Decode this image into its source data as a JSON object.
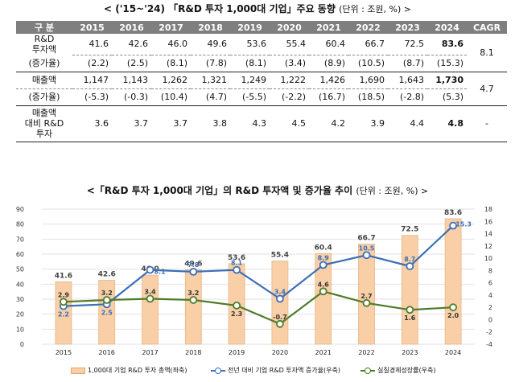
{
  "table_title": "< ('15~'24) 「R&D 투자 1,000대 기업」주요 동향",
  "table_unit": "(단위 : 조원, %) >",
  "table": {
    "header": [
      "구 분",
      "2015",
      "2016",
      "2017",
      "2018",
      "2019",
      "2020",
      "2021",
      "2022",
      "2023",
      "2024",
      "CAGR"
    ],
    "rnd_label_1": "R&D",
    "rnd_label_2": "투자액",
    "rnd_label_3": "(증가율)",
    "rnd_values": [
      "41.6",
      "42.6",
      "46.0",
      "49.6",
      "53.6",
      "55.4",
      "60.4",
      "66.7",
      "72.5",
      "83.6"
    ],
    "rnd_growth": [
      "(2.2)",
      "(2.5)",
      "(8.1)",
      "(7.8)",
      "(8.1)",
      "(3.4)",
      "(8.9)",
      "(10.5)",
      "(8.7)",
      "(15.3)"
    ],
    "rnd_cagr": "8.1",
    "sales_label_1": "매출액",
    "sales_label_2": "(증가율)",
    "sales_values": [
      "1,147",
      "1,143",
      "1,262",
      "1,321",
      "1,249",
      "1,222",
      "1,426",
      "1,690",
      "1,643",
      "1,730"
    ],
    "sales_growth": [
      "(-5.3)",
      "(-0.3)",
      "(10.4)",
      "(4.7)",
      "(-5.5)",
      "(-2.2)",
      "(16.7)",
      "(18.5)",
      "(-2.8)",
      "(5.3)"
    ],
    "sales_cagr": "4.7",
    "ratio_label_1": "매출액",
    "ratio_label_2": "대비 R&D",
    "ratio_label_3": "투자",
    "ratio_values": [
      "3.6",
      "3.7",
      "3.7",
      "3.8",
      "4.3",
      "4.5",
      "4.2",
      "3.9",
      "4.4",
      "4.8"
    ],
    "ratio_cagr": "-"
  },
  "chart_title": "<「R&D 투자 1,000대 기업」의 R&D 투자액 및 증가율 추이",
  "chart_unit": "(단위 : 조원, %) >",
  "chart_data": {
    "type": "bar",
    "categories": [
      "2015",
      "2016",
      "2017",
      "2018",
      "2019",
      "2020",
      "2021",
      "2022",
      "2023",
      "2024"
    ],
    "series": [
      {
        "name": "1,000대 기업 R&D 투자 총액(좌축)",
        "type": "bar",
        "axis": "left",
        "color": "#f9cfa8",
        "values": [
          41.6,
          42.6,
          46.0,
          49.6,
          53.6,
          55.4,
          60.4,
          66.7,
          72.5,
          83.6
        ]
      },
      {
        "name": "전년 대비 기업 R&D 투자액 증가율(우축)",
        "type": "line",
        "axis": "right",
        "color": "#3c6fb4",
        "values": [
          2.2,
          2.5,
          8.1,
          7.8,
          8.1,
          3.4,
          8.9,
          10.5,
          8.7,
          15.3
        ]
      },
      {
        "name": "실질경제성장률(우축)",
        "type": "line",
        "axis": "right",
        "color": "#4e7d2a",
        "values": [
          2.9,
          3.2,
          3.4,
          3.2,
          2.3,
          -0.7,
          4.6,
          2.7,
          1.6,
          2.0
        ]
      }
    ],
    "y_left": {
      "min": 0,
      "max": 90,
      "ticks": [
        0,
        10,
        20,
        30,
        40,
        50,
        60,
        70,
        80,
        90
      ]
    },
    "y_right": {
      "min": -4,
      "max": 18,
      "ticks": [
        -4,
        -2,
        0,
        2,
        4,
        6,
        8,
        10,
        12,
        14,
        16,
        18
      ]
    },
    "grid": true,
    "legend": "bottom"
  }
}
